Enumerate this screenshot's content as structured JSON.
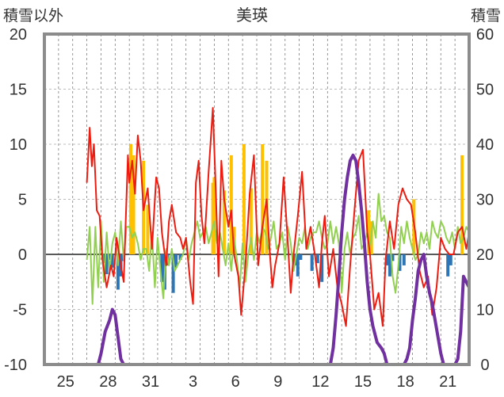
{
  "chart_data": {
    "type": "line",
    "title": "美瑛",
    "ylabel_left": "積雪以外",
    "ylabel_right": "積雪",
    "ylim_left": [
      -10,
      20
    ],
    "ylim_right": [
      0,
      60
    ],
    "yticks_left": [
      -10,
      -5,
      0,
      5,
      10,
      15,
      20
    ],
    "yticks_right": [
      0,
      10,
      20,
      30,
      40,
      50,
      60
    ],
    "x_range": [
      0,
      30
    ],
    "xtick_labels": [
      {
        "x": 1.5,
        "label": "25"
      },
      {
        "x": 4.5,
        "label": "28"
      },
      {
        "x": 7.5,
        "label": "31"
      },
      {
        "x": 10.5,
        "label": "3"
      },
      {
        "x": 13.5,
        "label": "6"
      },
      {
        "x": 16.5,
        "label": "9"
      },
      {
        "x": 19.5,
        "label": "12"
      },
      {
        "x": 22.5,
        "label": "15"
      },
      {
        "x": 25.5,
        "label": "18"
      },
      {
        "x": 28.5,
        "label": "21"
      }
    ],
    "grid": true,
    "colors": {
      "temperature": "#ee1c10",
      "wind": "#92d050",
      "precip_pos": "#ffc000",
      "precip_neg": "#2e75b6",
      "snow": "#7030a0",
      "frame": "#8c8c8c",
      "zero_line": "#595959"
    },
    "series": [
      {
        "type": "line",
        "color": "#ee1c10",
        "axis": "left",
        "x": [
          3.0,
          3.2,
          3.35,
          3.5,
          3.7,
          3.9,
          4.1,
          4.4,
          4.7,
          4.9,
          5.1,
          5.4,
          5.6,
          5.9,
          6.0,
          6.2,
          6.4,
          6.6,
          6.8,
          7.0,
          7.3,
          7.6,
          7.9,
          8.1,
          8.3,
          8.6,
          8.8,
          9.0,
          9.3,
          9.6,
          9.8,
          10.0,
          10.3,
          10.5,
          10.7,
          10.9,
          11.1,
          11.3,
          11.6,
          11.9,
          12.1,
          12.3,
          12.5,
          12.7,
          13.0,
          13.2,
          13.4,
          13.7,
          13.9,
          14.2,
          14.5,
          14.8,
          15.1,
          15.4,
          15.7,
          15.9,
          16.1,
          16.3,
          16.6,
          16.9,
          17.2,
          17.4,
          17.6,
          17.9,
          18.2,
          18.5,
          18.8,
          19.1,
          19.4,
          19.6,
          19.8,
          20.1,
          20.4,
          20.7,
          21.0,
          21.3,
          21.6,
          21.9,
          22.2,
          22.5,
          22.8,
          23.0,
          23.3,
          23.6,
          23.9,
          24.1,
          24.4,
          24.7,
          25.0,
          25.3,
          25.6,
          25.9,
          26.2,
          26.5,
          26.8,
          27.1,
          27.4,
          27.7,
          28.0,
          28.3,
          28.6,
          28.9,
          29.2,
          29.5,
          29.8,
          30.0
        ],
        "y": [
          6.5,
          11.5,
          8.0,
          10.0,
          4.0,
          3.5,
          -0.5,
          -3.0,
          -1.0,
          -2.0,
          1.5,
          -1.0,
          -2.5,
          9.0,
          6.5,
          8.5,
          5.5,
          10.8,
          8.5,
          4.0,
          6.0,
          0.5,
          7.0,
          6.0,
          2.0,
          -1.0,
          3.0,
          4.5,
          2.0,
          1.5,
          0.5,
          1.5,
          -2.5,
          -4.5,
          6.5,
          8.5,
          3.5,
          1.0,
          7.5,
          13.3,
          6.0,
          -2.0,
          8.5,
          5.0,
          2.5,
          4.0,
          0.0,
          -2.0,
          -5.5,
          -1.0,
          5.5,
          9.0,
          -1.0,
          2.5,
          5.0,
          0.5,
          -3.0,
          -1.0,
          1.0,
          7.0,
          1.0,
          -3.5,
          0.0,
          3.5,
          7.5,
          0.5,
          2.5,
          0.0,
          -3.0,
          1.0,
          3.5,
          -2.0,
          0.5,
          -3.0,
          -4.5,
          -6.5,
          -1.0,
          4.0,
          8.5,
          9.5,
          2.0,
          0.0,
          -5.0,
          -3.5,
          -6.5,
          -0.5,
          3.0,
          0.5,
          4.5,
          6.0,
          5.0,
          4.5,
          2.0,
          -1.5,
          -3.0,
          -2.0,
          -5.5,
          -3.0,
          1.5,
          0.5,
          0.0,
          0.0,
          2.0,
          2.5,
          0.5,
          2.0
        ]
      },
      {
        "type": "line",
        "color": "#92d050",
        "axis": "left",
        "x": [
          3.0,
          3.2,
          3.4,
          3.6,
          3.8,
          4.0,
          4.2,
          4.4,
          4.6,
          4.8,
          5.0,
          5.2,
          5.4,
          5.6,
          5.8,
          6.0,
          6.2,
          6.4,
          6.6,
          6.8,
          7.0,
          7.2,
          7.4,
          7.6,
          7.8,
          8.0,
          8.2,
          8.4,
          8.6,
          8.8,
          9.0,
          9.2,
          9.4,
          9.6,
          9.8,
          10.0,
          10.2,
          10.4,
          10.6,
          10.8,
          11.0,
          11.2,
          11.4,
          11.6,
          11.8,
          12.0,
          12.2,
          12.4,
          12.6,
          12.8,
          13.0,
          13.2,
          13.4,
          13.6,
          13.8,
          14.0,
          14.2,
          14.4,
          14.6,
          14.8,
          15.0,
          15.2,
          15.4,
          15.6,
          15.8,
          16.0,
          16.2,
          16.4,
          16.6,
          16.8,
          17.0,
          17.2,
          17.4,
          17.6,
          17.8,
          18.0,
          18.2,
          18.4,
          18.6,
          18.8,
          19.0,
          19.2,
          19.4,
          19.6,
          19.8,
          20.0,
          20.2,
          20.4,
          20.6,
          20.8,
          21.0,
          21.2,
          21.4,
          21.6,
          21.8,
          22.0,
          22.2,
          22.4,
          22.6,
          22.8,
          23.0,
          23.2,
          23.4,
          23.6,
          23.8,
          24.0,
          24.2,
          24.4,
          24.6,
          24.8,
          25.0,
          25.2,
          25.4,
          25.6,
          25.8,
          26.0,
          26.2,
          26.4,
          26.6,
          26.8,
          27.0,
          27.2,
          27.4,
          27.6,
          27.8,
          28.0,
          28.2,
          28.4,
          28.6,
          28.8,
          29.0,
          29.2,
          29.4,
          29.6,
          29.8,
          30.0
        ],
        "y": [
          -0.5,
          2.5,
          -4.5,
          2.5,
          -3.0,
          3.0,
          -2.5,
          2.0,
          -1.5,
          1.0,
          2.0,
          -1.0,
          3.0,
          -0.5,
          2.5,
          2.5,
          1.5,
          2.0,
          1.0,
          -0.5,
          0.5,
          0.5,
          -1.5,
          2.0,
          -3.0,
          1.5,
          -1.5,
          -4.0,
          0.5,
          -1.0,
          0.5,
          -1.5,
          -1.0,
          -0.5,
          0.0,
          1.5,
          -0.5,
          1.0,
          2.0,
          3.0,
          1.5,
          2.0,
          2.5,
          1.0,
          2.0,
          3.0,
          1.0,
          2.0,
          0.5,
          -1.0,
          1.0,
          -1.5,
          1.5,
          -0.5,
          -3.0,
          1.0,
          -2.5,
          0.0,
          1.5,
          -0.5,
          2.0,
          1.0,
          2.5,
          2.0,
          0.5,
          1.5,
          3.0,
          0.5,
          1.0,
          2.0,
          -0.5,
          2.5,
          1.0,
          -1.5,
          0.0,
          1.5,
          1.0,
          2.5,
          0.5,
          1.5,
          2.0,
          2.0,
          3.0,
          1.5,
          0.5,
          1.0,
          3.0,
          1.0,
          2.5,
          1.0,
          -3.5,
          0.5,
          2.0,
          0.0,
          1.5,
          2.0,
          3.5,
          0.5,
          1.0,
          2.0,
          0.5,
          3.0,
          1.5,
          5.5,
          3.0,
          3.5,
          2.0,
          1.5,
          -2.0,
          -3.5,
          -1.0,
          2.5,
          1.0,
          3.0,
          1.5,
          0.5,
          -0.5,
          0.0,
          2.0,
          1.0,
          2.0,
          0.5,
          3.0,
          2.0,
          1.5,
          3.0,
          2.5,
          1.5,
          1.0,
          2.0,
          0.5,
          2.5,
          1.0,
          1.5,
          2.5,
          2.0
        ]
      },
      {
        "type": "line",
        "color": "#7030a0",
        "axis": "right",
        "x": [
          0.0,
          3.8,
          4.0,
          4.3,
          4.6,
          4.8,
          5.0,
          5.2,
          5.4,
          5.6,
          5.8,
          20.2,
          20.4,
          20.6,
          20.8,
          21.0,
          21.2,
          21.4,
          21.6,
          21.8,
          22.0,
          22.2,
          22.4,
          22.6,
          22.8,
          23.0,
          23.2,
          23.5,
          23.8,
          24.0,
          24.2,
          24.4,
          24.6,
          24.8,
          25.0,
          25.2,
          25.4,
          25.6,
          25.8,
          26.0,
          26.2,
          26.4,
          26.6,
          26.8,
          27.0,
          27.2,
          27.4,
          27.6,
          27.8,
          28.0,
          28.2,
          28.4,
          28.6,
          28.8,
          29.0,
          29.2,
          29.4,
          29.6,
          29.8,
          30.0
        ],
        "y": [
          0,
          0,
          2,
          6,
          8,
          10,
          9,
          5,
          1,
          0,
          0,
          0,
          3,
          9,
          16,
          24,
          30,
          34,
          37,
          38,
          37,
          33,
          28,
          22,
          15,
          10,
          7,
          4,
          3,
          2,
          0,
          0,
          0,
          0,
          0,
          0,
          0,
          1,
          3,
          8,
          12,
          17,
          19,
          20,
          16,
          13,
          11,
          8,
          5,
          2,
          0,
          0,
          0,
          0,
          0,
          1,
          6,
          16,
          15,
          14
        ]
      }
    ],
    "precip_bars": [
      {
        "x": 4.2,
        "y": -0.8
      },
      {
        "x": 4.4,
        "y": -1.8
      },
      {
        "x": 4.6,
        "y": -0.5
      },
      {
        "x": 4.8,
        "y": -1.2
      },
      {
        "x": 5.2,
        "y": -3.2
      },
      {
        "x": 5.4,
        "y": -2.0
      },
      {
        "x": 5.6,
        "y": -0.6
      },
      {
        "x": 6.1,
        "y": 10.0
      },
      {
        "x": 6.3,
        "y": 9.0
      },
      {
        "x": 7.0,
        "y": 8.5
      },
      {
        "x": 7.3,
        "y": 4.5
      },
      {
        "x": 8.3,
        "y": -2.5
      },
      {
        "x": 8.5,
        "y": -3.2
      },
      {
        "x": 8.7,
        "y": -1.0
      },
      {
        "x": 9.1,
        "y": -3.5
      },
      {
        "x": 9.3,
        "y": -1.2
      },
      {
        "x": 9.6,
        "y": -0.5
      },
      {
        "x": 11.9,
        "y": 6.5
      },
      {
        "x": 12.0,
        "y": 7.0
      },
      {
        "x": 12.7,
        "y": 5.8
      },
      {
        "x": 13.2,
        "y": 9.0
      },
      {
        "x": 13.4,
        "y": 2.5
      },
      {
        "x": 14.1,
        "y": 10.0
      },
      {
        "x": 14.6,
        "y": 6.0
      },
      {
        "x": 15.4,
        "y": 10.0
      },
      {
        "x": 15.7,
        "y": 8.5
      },
      {
        "x": 17.7,
        "y": -1.0
      },
      {
        "x": 17.9,
        "y": -2.0
      },
      {
        "x": 18.1,
        "y": -0.5
      },
      {
        "x": 18.9,
        "y": -1.5
      },
      {
        "x": 19.3,
        "y": -0.8
      },
      {
        "x": 19.6,
        "y": -2.5
      },
      {
        "x": 22.9,
        "y": 4.0
      },
      {
        "x": 23.1,
        "y": 3.0
      },
      {
        "x": 24.2,
        "y": -1.0
      },
      {
        "x": 24.4,
        "y": -2.0
      },
      {
        "x": 24.6,
        "y": -0.6
      },
      {
        "x": 25.1,
        "y": -1.5
      },
      {
        "x": 25.4,
        "y": -1.0
      },
      {
        "x": 26.1,
        "y": 5.0
      },
      {
        "x": 28.5,
        "y": -2.0
      },
      {
        "x": 28.7,
        "y": -1.0
      },
      {
        "x": 29.5,
        "y": 9.0
      }
    ]
  }
}
